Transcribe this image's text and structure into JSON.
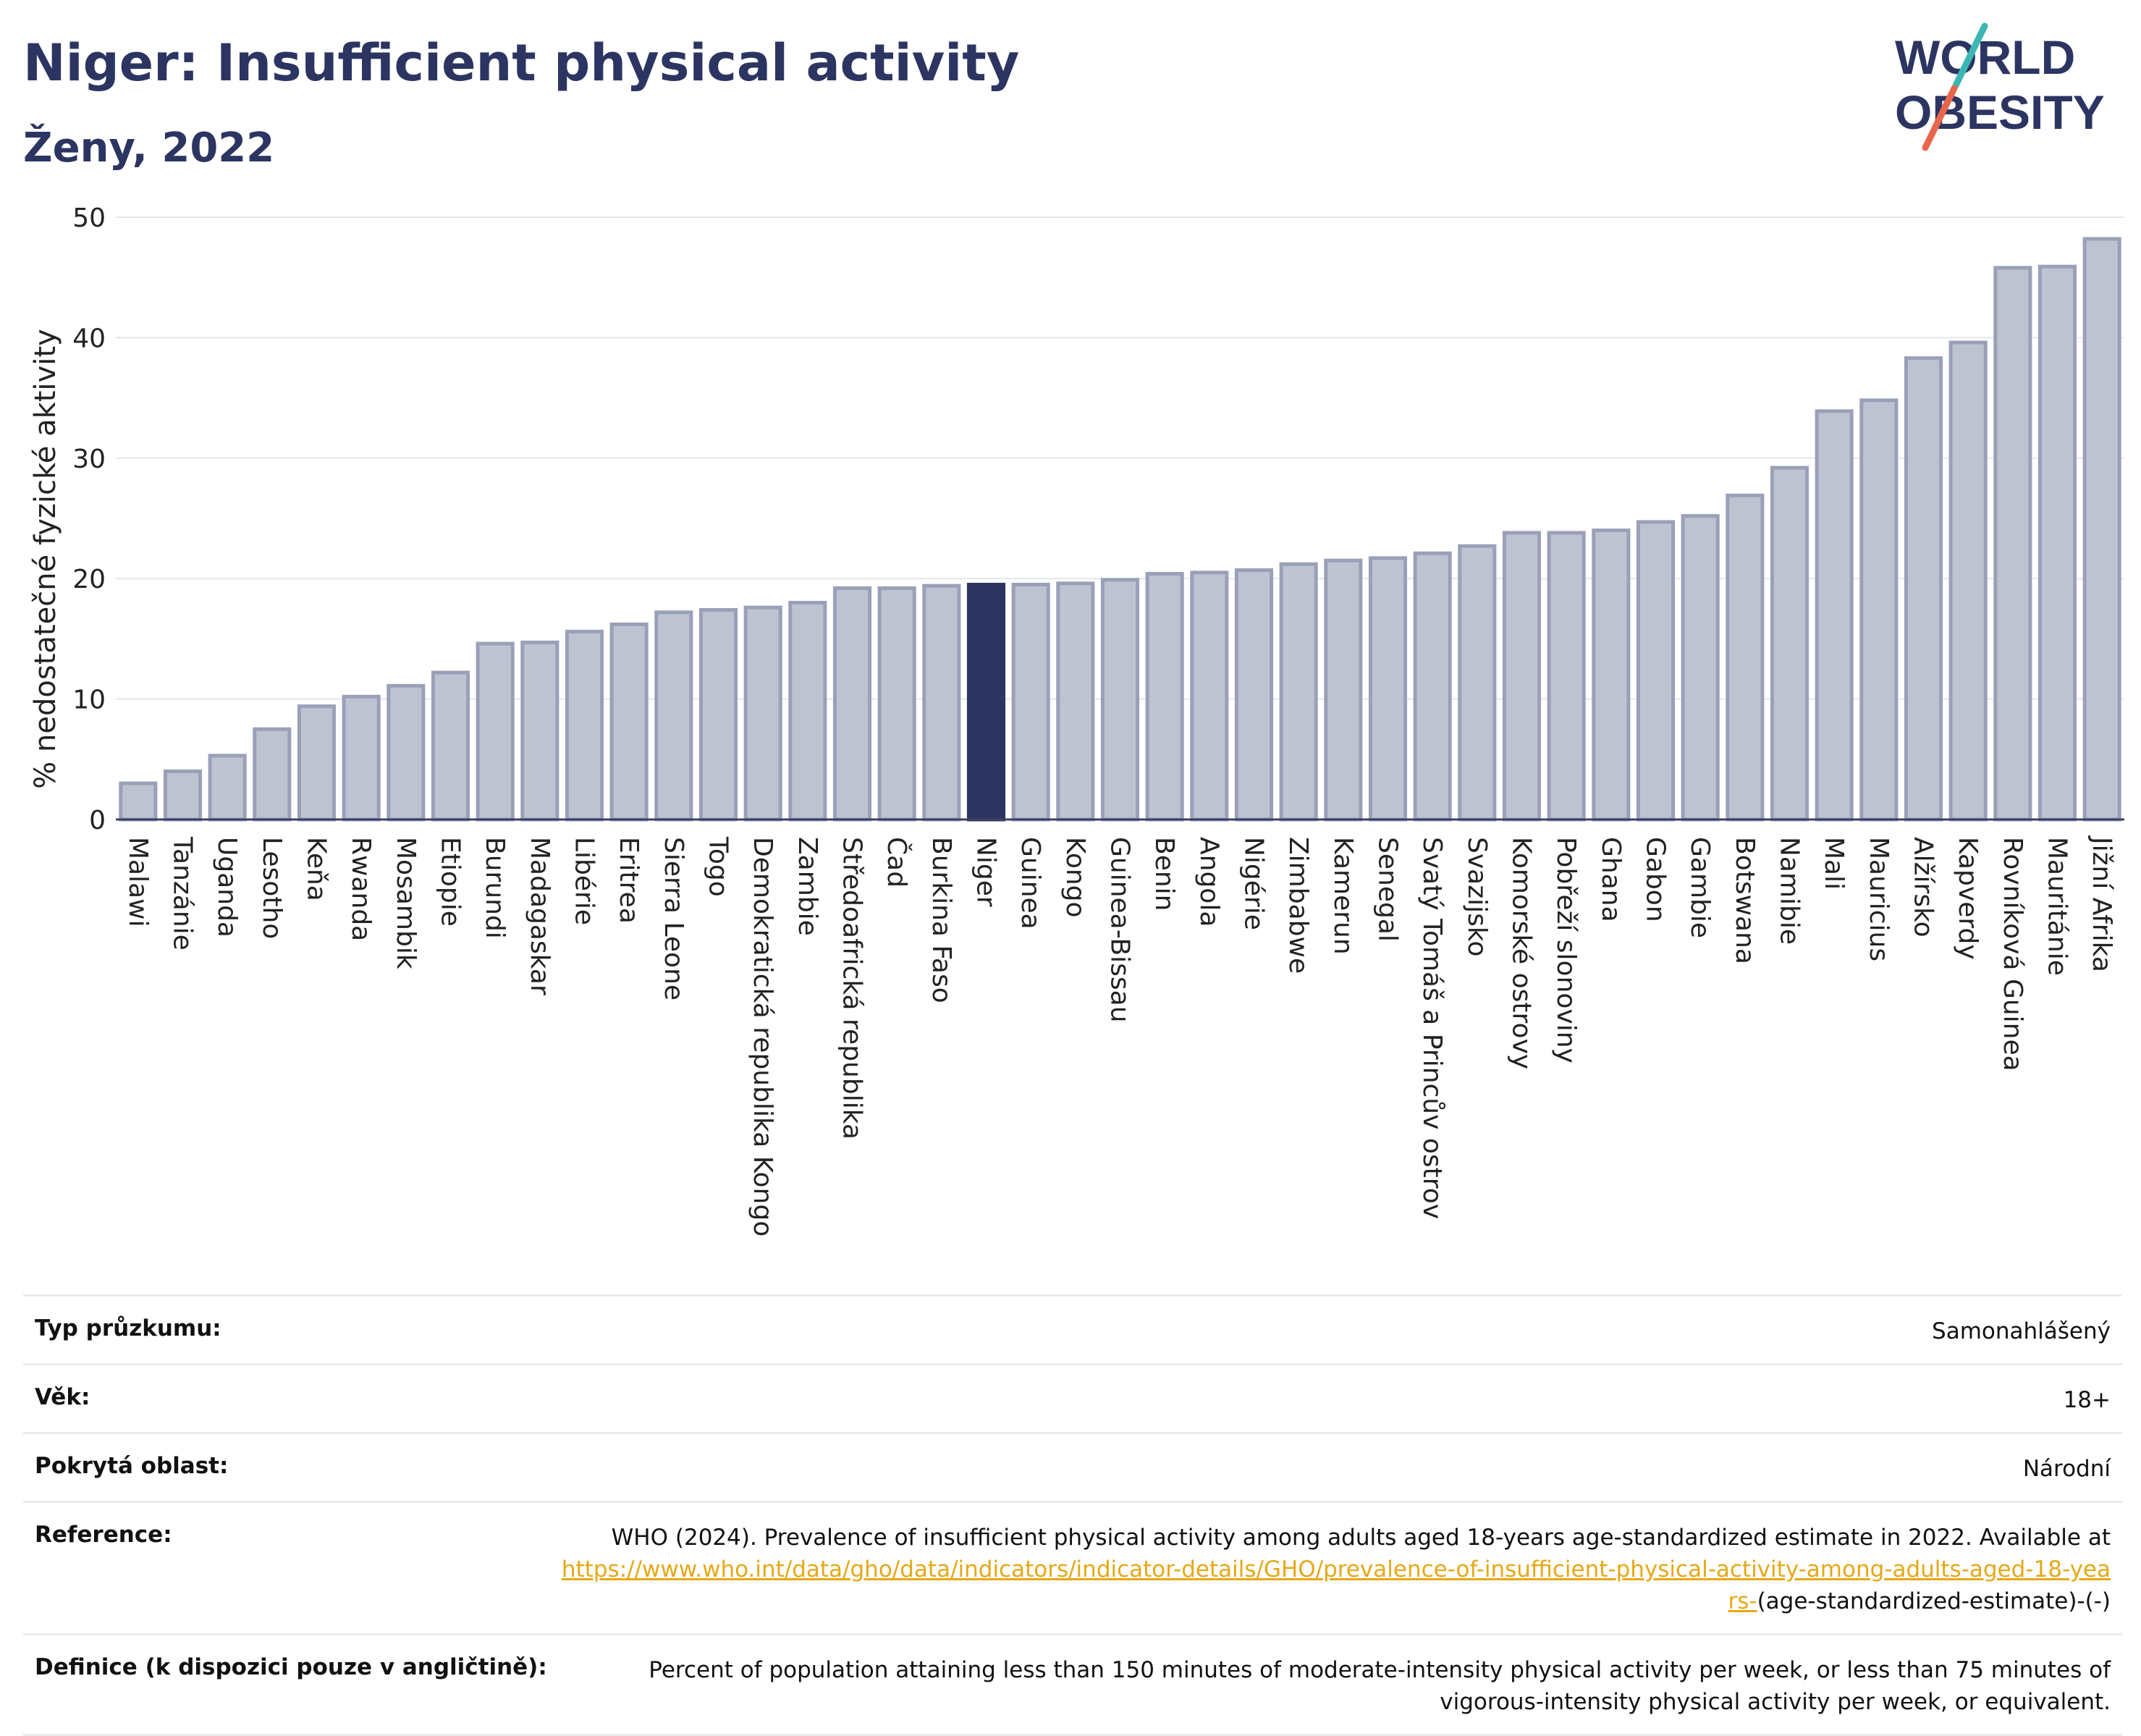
{
  "header": {
    "title": "Niger: Insufficient physical activity",
    "subtitle": "Ženy, 2022"
  },
  "logo": {
    "line1": "WORLD",
    "line2": "OBESITY",
    "colors": {
      "text": "#2c3561",
      "slash_teal": "#3cb7b4",
      "slash_coral": "#e8664c"
    }
  },
  "colors": {
    "bar": "#bfc3d1",
    "bar_border": "#9aa0b8",
    "highlight": "#2c3561",
    "grid": "#e5e7eb"
  },
  "chart_data": {
    "type": "bar",
    "title": "Niger: Insufficient physical activity",
    "subtitle": "Ženy, 2022",
    "ylabel": "% nedostatečné fyzické aktivity",
    "xlabel": "",
    "ylim": [
      0,
      50
    ],
    "yticks": [
      0,
      10,
      20,
      30,
      40,
      50
    ],
    "grid": true,
    "highlight": "Niger",
    "categories": [
      "Malawi",
      "Tanzánie",
      "Uganda",
      "Lesotho",
      "Keňa",
      "Rwanda",
      "Mosambik",
      "Etiopie",
      "Burundi",
      "Madagaskar",
      "Libérie",
      "Eritrea",
      "Sierra Leone",
      "Togo",
      "Demokratická republika Kongo",
      "Zambie",
      "Středoafrická republika",
      "Čad",
      "Burkina Faso",
      "Niger",
      "Guinea",
      "Kongo",
      "Guinea-Bissau",
      "Benin",
      "Angola",
      "Nigérie",
      "Zimbabwe",
      "Kamerun",
      "Senegal",
      "Svatý Tomáš a Princův ostrov",
      "Svazijsko",
      "Komorské ostrovy",
      "Pobřeží slonoviny",
      "Ghana",
      "Gabon",
      "Gambie",
      "Botswana",
      "Namibie",
      "Mali",
      "Mauricius",
      "Alžírsko",
      "Kapverdy",
      "Rovníková Guinea",
      "Mauritánie",
      "Jižní Afrika"
    ],
    "values": [
      3.0,
      4.0,
      5.3,
      7.5,
      9.4,
      10.2,
      11.1,
      12.2,
      14.6,
      14.7,
      15.6,
      16.2,
      17.2,
      17.4,
      17.6,
      18.0,
      19.2,
      19.2,
      19.4,
      19.5,
      19.5,
      19.6,
      19.9,
      20.4,
      20.5,
      20.7,
      21.2,
      21.5,
      21.7,
      22.1,
      22.7,
      23.8,
      23.8,
      24.0,
      24.7,
      25.2,
      26.9,
      29.2,
      33.9,
      34.8,
      38.3,
      39.6,
      45.8,
      45.9,
      48.2
    ]
  },
  "info": {
    "rows": [
      {
        "label": "Typ průzkumu:",
        "value": "Samonahlášený"
      },
      {
        "label": "Věk:",
        "value": "18+"
      },
      {
        "label": "Pokrytá oblast:",
        "value": "Národní"
      }
    ],
    "reference": {
      "label": "Reference:",
      "text_before": "WHO (2024). Prevalence of insufficient physical activity among adults aged 18-years age-standardized estimate in 2022. Available at",
      "link": "https://www.who.int/data/gho/data/indicators/indicator-details/GHO/prevalence-of-insufficient-physical-activity-among-adults-aged-18-years-",
      "text_after": "(age-standardized-estimate)-(-)"
    },
    "definition": {
      "label": "Definice (k dispozici pouze v angličtině):",
      "value": "Percent of population attaining less than 150 minutes of moderate-intensity physical activity per week, or less than 75 minutes of vigorous-intensity physical activity per week, or equivalent."
    }
  }
}
